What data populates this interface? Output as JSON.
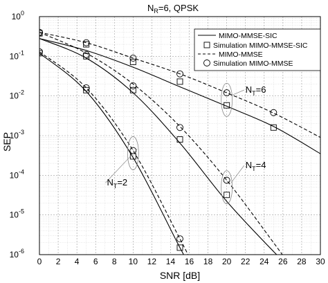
{
  "chart_data": {
    "type": "line",
    "title": "N_R=6, QPSK",
    "title_main": "N",
    "title_sub": "R",
    "title_rest": "=6, QPSK",
    "xlabel": "SNR [dB]",
    "ylabel": "SEP",
    "xlim": [
      0,
      30
    ],
    "ylim": [
      1e-06,
      1
    ],
    "yscale": "log",
    "grid": true,
    "legend_position": "top-right",
    "x_ticks": [
      0,
      2,
      4,
      6,
      8,
      10,
      12,
      14,
      16,
      18,
      20,
      22,
      24,
      26,
      28,
      30
    ],
    "x_tick_labels": [
      "0",
      "2",
      "4",
      "6",
      "8",
      "10",
      "12",
      "14",
      "16",
      "18",
      "20",
      "22",
      "24",
      "26",
      "28",
      "30"
    ],
    "y_ticks": [
      {
        "value": 1,
        "base": "10",
        "exp": "0"
      },
      {
        "value": 0.1,
        "base": "10",
        "exp": "-1"
      },
      {
        "value": 0.01,
        "base": "10",
        "exp": "-2"
      },
      {
        "value": 0.001,
        "base": "10",
        "exp": "-3"
      },
      {
        "value": 0.0001,
        "base": "10",
        "exp": "-4"
      },
      {
        "value": 1e-05,
        "base": "10",
        "exp": "-5"
      },
      {
        "value": 1e-06,
        "base": "10",
        "exp": "-6"
      }
    ],
    "legend": [
      {
        "label": "MIMO-MMSE-SIC",
        "style": "solid-line"
      },
      {
        "label": "Simulation MIMO-MMSE-SIC",
        "style": "square-marker"
      },
      {
        "label": "MIMO-MMSE",
        "style": "dashed-line"
      },
      {
        "label": "Simulation MIMO-MMSE",
        "style": "circle-marker"
      }
    ],
    "series": [
      {
        "group": "NT=6",
        "kind": "MIMO-MMSE-SIC",
        "style": "solid",
        "x": [
          0,
          5,
          10,
          15,
          20,
          25,
          30
        ],
        "y": [
          0.28,
          0.14,
          0.053,
          0.017,
          0.0055,
          0.0017,
          0.00035
        ]
      },
      {
        "group": "NT=6",
        "kind": "Simulation MIMO-MMSE-SIC",
        "style": "square",
        "x": [
          0,
          5,
          10,
          15,
          20,
          25
        ],
        "y": [
          0.38,
          0.2,
          0.072,
          0.023,
          0.0058,
          0.0016
        ]
      },
      {
        "group": "NT=6",
        "kind": "MIMO-MMSE",
        "style": "dashed",
        "x": [
          0,
          5,
          10,
          15,
          20,
          25,
          30
        ],
        "y": [
          0.4,
          0.22,
          0.09,
          0.036,
          0.012,
          0.0037,
          0.0009
        ]
      },
      {
        "group": "NT=6",
        "kind": "Simulation MIMO-MMSE",
        "style": "circle",
        "x": [
          0,
          5,
          10,
          15,
          20,
          25
        ],
        "y": [
          0.4,
          0.22,
          0.09,
          0.036,
          0.012,
          0.0038
        ]
      },
      {
        "group": "NT=4",
        "kind": "MIMO-MMSE-SIC",
        "style": "solid",
        "x": [
          0,
          5,
          10,
          15,
          20,
          25,
          28
        ],
        "y": [
          0.28,
          0.09,
          0.012,
          0.00065,
          2.2e-05,
          1.2e-06,
          2.5e-07
        ]
      },
      {
        "group": "NT=4",
        "kind": "Simulation MIMO-MMSE-SIC",
        "style": "square",
        "x": [
          0,
          5,
          10,
          15,
          20
        ],
        "y": [
          0.38,
          0.1,
          0.014,
          0.0008,
          3.2e-05
        ]
      },
      {
        "group": "NT=4",
        "kind": "MIMO-MMSE",
        "style": "dashed",
        "x": [
          0,
          5,
          10,
          15,
          20,
          25,
          27
        ],
        "y": [
          0.4,
          0.12,
          0.02,
          0.0017,
          7.5e-05,
          2e-06,
          4.5e-07
        ]
      },
      {
        "group": "NT=4",
        "kind": "Simulation MIMO-MMSE",
        "style": "circle",
        "x": [
          0,
          5,
          10,
          15,
          20
        ],
        "y": [
          0.4,
          0.11,
          0.018,
          0.0016,
          7.5e-05
        ]
      },
      {
        "group": "NT=2",
        "kind": "MIMO-MMSE-SIC",
        "style": "solid",
        "x": [
          0,
          5,
          10,
          15,
          16.5
        ],
        "y": [
          0.12,
          0.013,
          0.00028,
          1.5e-06,
          3.5e-07
        ]
      },
      {
        "group": "NT=2",
        "kind": "Simulation MIMO-MMSE-SIC",
        "style": "square",
        "x": [
          0,
          5,
          10,
          15
        ],
        "y": [
          0.12,
          0.014,
          0.0003,
          1.5e-06
        ]
      },
      {
        "group": "NT=2",
        "kind": "MIMO-MMSE",
        "style": "dashed",
        "x": [
          0,
          5,
          10,
          15,
          16.5
        ],
        "y": [
          0.13,
          0.016,
          0.00042,
          2.5e-06,
          5e-07
        ]
      },
      {
        "group": "NT=2",
        "kind": "Simulation MIMO-MMSE",
        "style": "circle",
        "x": [
          0,
          5,
          10,
          15
        ],
        "y": [
          0.13,
          0.016,
          0.00042,
          2.5e-06
        ]
      }
    ],
    "annotations": [
      {
        "id": "nt6",
        "main": "N",
        "sub": "T",
        "rest": "=6",
        "label_x": 22,
        "label_y": 0.012,
        "ellipse_x": 20,
        "ellipse_y": 0.008
      },
      {
        "id": "nt4",
        "main": "N",
        "sub": "T",
        "rest": "=4",
        "label_x": 22,
        "label_y": 0.00015,
        "ellipse_x": 20,
        "ellipse_y": 5e-05
      },
      {
        "id": "nt2",
        "main": "N",
        "sub": "T",
        "rest": "=2",
        "label_x": 7.2,
        "label_y": 5.5e-05,
        "ellipse_x": 10,
        "ellipse_y": 0.00036
      }
    ]
  }
}
